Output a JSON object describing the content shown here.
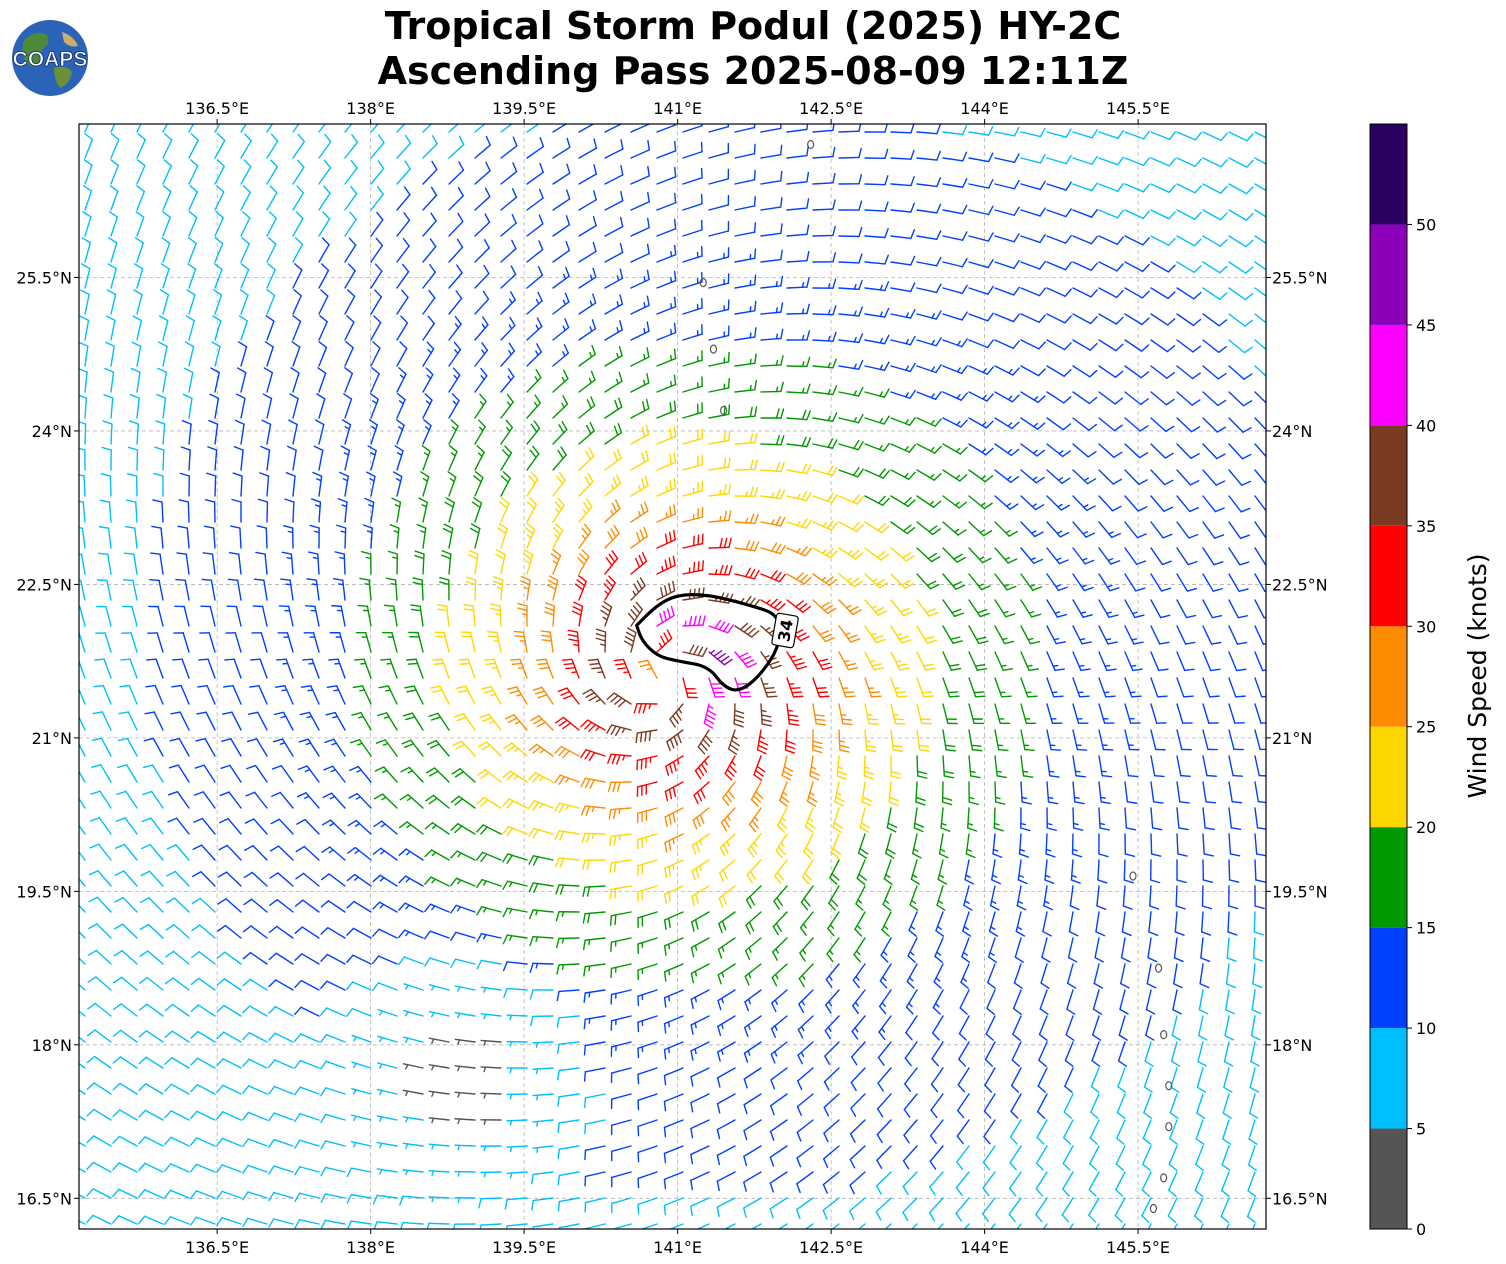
{
  "header": {
    "title_line1": "Tropical Storm Podul (2025) HY-2C",
    "title_line2": "Ascending Pass 2025-08-09 12:11Z",
    "logo_text": "COAPS"
  },
  "chart_data": {
    "type": "wind-barb map",
    "xlim": [
      135.15,
      146.75
    ],
    "ylim": [
      16.2,
      27.0
    ],
    "x_ticks": [
      136.5,
      138,
      139.5,
      141,
      142.5,
      144,
      145.5
    ],
    "x_tick_labels": [
      "136.5°E",
      "138°E",
      "139.5°E",
      "141°E",
      "142.5°E",
      "144°E",
      "145.5°E"
    ],
    "y_ticks": [
      16.5,
      18,
      19.5,
      21,
      22.5,
      24,
      25.5
    ],
    "y_tick_labels": [
      "16.5°N",
      "18°N",
      "19.5°N",
      "21°N",
      "22.5°N",
      "24°N",
      "25.5°N"
    ],
    "grid": true,
    "storm_center": {
      "lon": 140.9,
      "lat": 21.6
    },
    "contour": {
      "level_label": "34",
      "color": "#000000",
      "points": [
        [
          140.6,
          22.1
        ],
        [
          140.8,
          22.3
        ],
        [
          141.0,
          22.4
        ],
        [
          141.3,
          22.4
        ],
        [
          141.7,
          22.3
        ],
        [
          142.0,
          22.2
        ],
        [
          142.0,
          21.9
        ],
        [
          141.8,
          21.6
        ],
        [
          141.6,
          21.45
        ],
        [
          141.45,
          21.5
        ],
        [
          141.3,
          21.7
        ],
        [
          141.0,
          21.75
        ],
        [
          140.8,
          21.8
        ],
        [
          140.65,
          21.95
        ]
      ]
    },
    "colorbar": {
      "label": "Wind Speed (knots)",
      "ticks": [
        0,
        5,
        10,
        15,
        20,
        25,
        30,
        35,
        40,
        45,
        50
      ],
      "bins": [
        {
          "min": 0,
          "max": 5,
          "color": "#555555"
        },
        {
          "min": 5,
          "max": 10,
          "color": "#00bfff"
        },
        {
          "min": 10,
          "max": 15,
          "color": "#0040ff"
        },
        {
          "min": 15,
          "max": 20,
          "color": "#009900"
        },
        {
          "min": 20,
          "max": 25,
          "color": "#ffd700"
        },
        {
          "min": 25,
          "max": 30,
          "color": "#ff8c00"
        },
        {
          "min": 30,
          "max": 35,
          "color": "#ff0000"
        },
        {
          "min": 35,
          "max": 40,
          "color": "#7b3a22"
        },
        {
          "min": 40,
          "max": 45,
          "color": "#ff00ff"
        },
        {
          "min": 45,
          "max": 50,
          "color": "#8b00b8"
        },
        {
          "min": 50,
          "max": 55,
          "color": "#2a0060"
        }
      ]
    },
    "wind_field_model": {
      "core_radius_deg": 0.45,
      "peak_speed_kt": 42,
      "far_speed_kt": 8,
      "low_wind_region": {
        "lon": 139.0,
        "lat": 17.7,
        "radius_deg": 1.4,
        "speed_kt": 3
      }
    },
    "islands": [
      {
        "lon": 141.25,
        "lat": 25.45
      },
      {
        "lon": 141.35,
        "lat": 24.8
      },
      {
        "lon": 141.45,
        "lat": 24.2
      },
      {
        "lon": 145.45,
        "lat": 19.65
      },
      {
        "lon": 145.7,
        "lat": 18.75
      },
      {
        "lon": 145.75,
        "lat": 18.1
      },
      {
        "lon": 145.8,
        "lat": 17.6
      },
      {
        "lon": 145.8,
        "lat": 17.2
      },
      {
        "lon": 145.75,
        "lat": 16.7
      },
      {
        "lon": 145.65,
        "lat": 16.4
      },
      {
        "lon": 142.3,
        "lat": 26.8
      }
    ]
  }
}
